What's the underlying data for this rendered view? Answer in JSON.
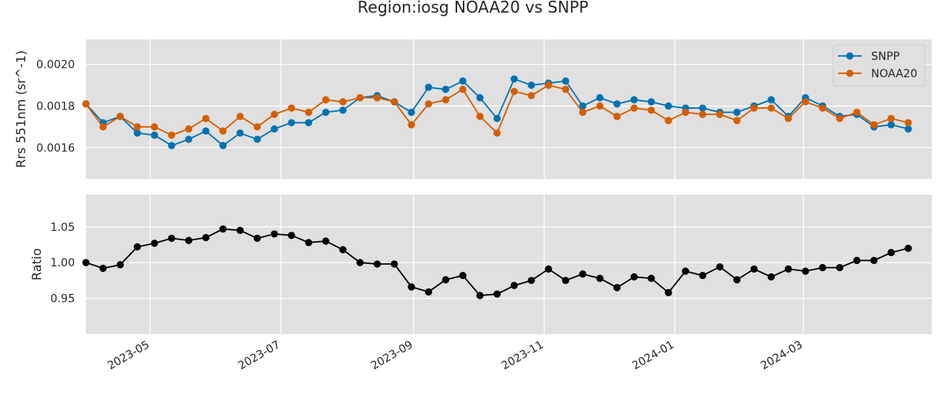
{
  "figure": {
    "title": "Region:iosg NOAA20 vs SNPP"
  },
  "chart_data": [
    {
      "type": "line",
      "title": "Region:iosg NOAA20 vs SNPP",
      "xlabel": "",
      "ylabel": "Rrs 551nm (sr^-1)",
      "xlim": [
        "2023-04-01",
        "2024-04-30"
      ],
      "ylim": [
        0.00145,
        0.00212
      ],
      "yticks": [
        0.0016,
        0.0018,
        0.002
      ],
      "ytick_labels": [
        "0.0016",
        "0.0018",
        "0.0020"
      ],
      "grid": true,
      "legend": "top-right",
      "x": [
        "2023-04-01",
        "2023-04-09",
        "2023-04-17",
        "2023-04-25",
        "2023-05-03",
        "2023-05-11",
        "2023-05-19",
        "2023-05-27",
        "2023-06-04",
        "2023-06-12",
        "2023-06-20",
        "2023-06-28",
        "2023-07-06",
        "2023-07-14",
        "2023-07-22",
        "2023-07-30",
        "2023-08-07",
        "2023-08-15",
        "2023-08-23",
        "2023-08-31",
        "2023-09-08",
        "2023-09-16",
        "2023-09-24",
        "2023-10-02",
        "2023-10-10",
        "2023-10-18",
        "2023-10-26",
        "2023-11-03",
        "2023-11-11",
        "2023-11-19",
        "2023-11-27",
        "2023-12-05",
        "2023-12-13",
        "2023-12-21",
        "2023-12-29",
        "2024-01-06",
        "2024-01-14",
        "2024-01-22",
        "2024-01-30",
        "2024-02-07",
        "2024-02-15",
        "2024-02-23",
        "2024-03-02",
        "2024-03-10",
        "2024-03-18",
        "2024-03-26",
        "2024-04-03",
        "2024-04-11",
        "2024-04-19"
      ],
      "series": [
        {
          "name": "SNPP",
          "color": "#0072b2",
          "values": [
            0.00181,
            0.00172,
            0.00175,
            0.00167,
            0.00166,
            0.00161,
            0.00164,
            0.00168,
            0.00161,
            0.00167,
            0.00164,
            0.00169,
            0.00172,
            0.00172,
            0.00177,
            0.00178,
            0.00184,
            0.00185,
            0.00182,
            0.00177,
            0.00189,
            0.00188,
            0.00192,
            0.00184,
            0.00174,
            0.00193,
            0.0019,
            0.00191,
            0.00192,
            0.0018,
            0.00184,
            0.00181,
            0.00183,
            0.00182,
            0.0018,
            0.00179,
            0.00179,
            0.00177,
            0.00177,
            0.0018,
            0.00183,
            0.00175,
            0.00184,
            0.0018,
            0.00175,
            0.00176,
            0.0017,
            0.00171,
            0.00169
          ]
        },
        {
          "name": "NOAA20",
          "color": "#d55e00",
          "values": [
            0.00181,
            0.0017,
            0.00175,
            0.0017,
            0.0017,
            0.00166,
            0.00169,
            0.00174,
            0.00168,
            0.00175,
            0.0017,
            0.00176,
            0.00179,
            0.00177,
            0.00183,
            0.00182,
            0.00184,
            0.00184,
            0.00182,
            0.00171,
            0.00181,
            0.00183,
            0.00188,
            0.00175,
            0.00167,
            0.00187,
            0.00185,
            0.0019,
            0.00188,
            0.00177,
            0.0018,
            0.00175,
            0.00179,
            0.00178,
            0.00173,
            0.00177,
            0.00176,
            0.00176,
            0.00173,
            0.00179,
            0.00179,
            0.00174,
            0.00182,
            0.00179,
            0.00174,
            0.00177,
            0.00171,
            0.00174,
            0.00172
          ]
        }
      ]
    },
    {
      "type": "line",
      "xlabel": "",
      "ylabel": "Ratio",
      "xlim": [
        "2023-04-01",
        "2024-04-30"
      ],
      "ylim": [
        0.9,
        1.095
      ],
      "yticks": [
        0.95,
        1.0,
        1.05
      ],
      "ytick_labels": [
        "0.95",
        "1.00",
        "1.05"
      ],
      "xtick_labels": [
        "2023-05",
        "2023-07",
        "2023-09",
        "2023-11",
        "2024-01",
        "2024-03"
      ],
      "xticks": [
        "2023-05-01",
        "2023-07-01",
        "2023-09-01",
        "2023-11-01",
        "2024-01-01",
        "2024-03-01"
      ],
      "grid": true,
      "x": [
        "2023-04-01",
        "2023-04-09",
        "2023-04-17",
        "2023-04-25",
        "2023-05-03",
        "2023-05-11",
        "2023-05-19",
        "2023-05-27",
        "2023-06-04",
        "2023-06-12",
        "2023-06-20",
        "2023-06-28",
        "2023-07-06",
        "2023-07-14",
        "2023-07-22",
        "2023-07-30",
        "2023-08-07",
        "2023-08-15",
        "2023-08-23",
        "2023-08-31",
        "2023-09-08",
        "2023-09-16",
        "2023-09-24",
        "2023-10-02",
        "2023-10-10",
        "2023-10-18",
        "2023-10-26",
        "2023-11-03",
        "2023-11-11",
        "2023-11-19",
        "2023-11-27",
        "2023-12-05",
        "2023-12-13",
        "2023-12-21",
        "2023-12-29",
        "2024-01-06",
        "2024-01-14",
        "2024-01-22",
        "2024-01-30",
        "2024-02-07",
        "2024-02-15",
        "2024-02-23",
        "2024-03-02",
        "2024-03-10",
        "2024-03-18",
        "2024-03-26",
        "2024-04-03",
        "2024-04-11",
        "2024-04-19"
      ],
      "series": [
        {
          "color": "#000000",
          "values": [
            1.0,
            0.992,
            0.997,
            1.022,
            1.027,
            1.034,
            1.031,
            1.035,
            1.047,
            1.045,
            1.034,
            1.04,
            1.038,
            1.028,
            1.03,
            1.018,
            1.0,
            0.998,
            0.998,
            0.966,
            0.959,
            0.976,
            0.982,
            0.954,
            0.956,
            0.968,
            0.975,
            0.991,
            0.975,
            0.984,
            0.978,
            0.965,
            0.98,
            0.978,
            0.958,
            0.988,
            0.982,
            0.994,
            0.976,
            0.991,
            0.98,
            0.991,
            0.988,
            0.993,
            0.993,
            1.003,
            1.003,
            1.014,
            1.02
          ]
        }
      ]
    }
  ]
}
